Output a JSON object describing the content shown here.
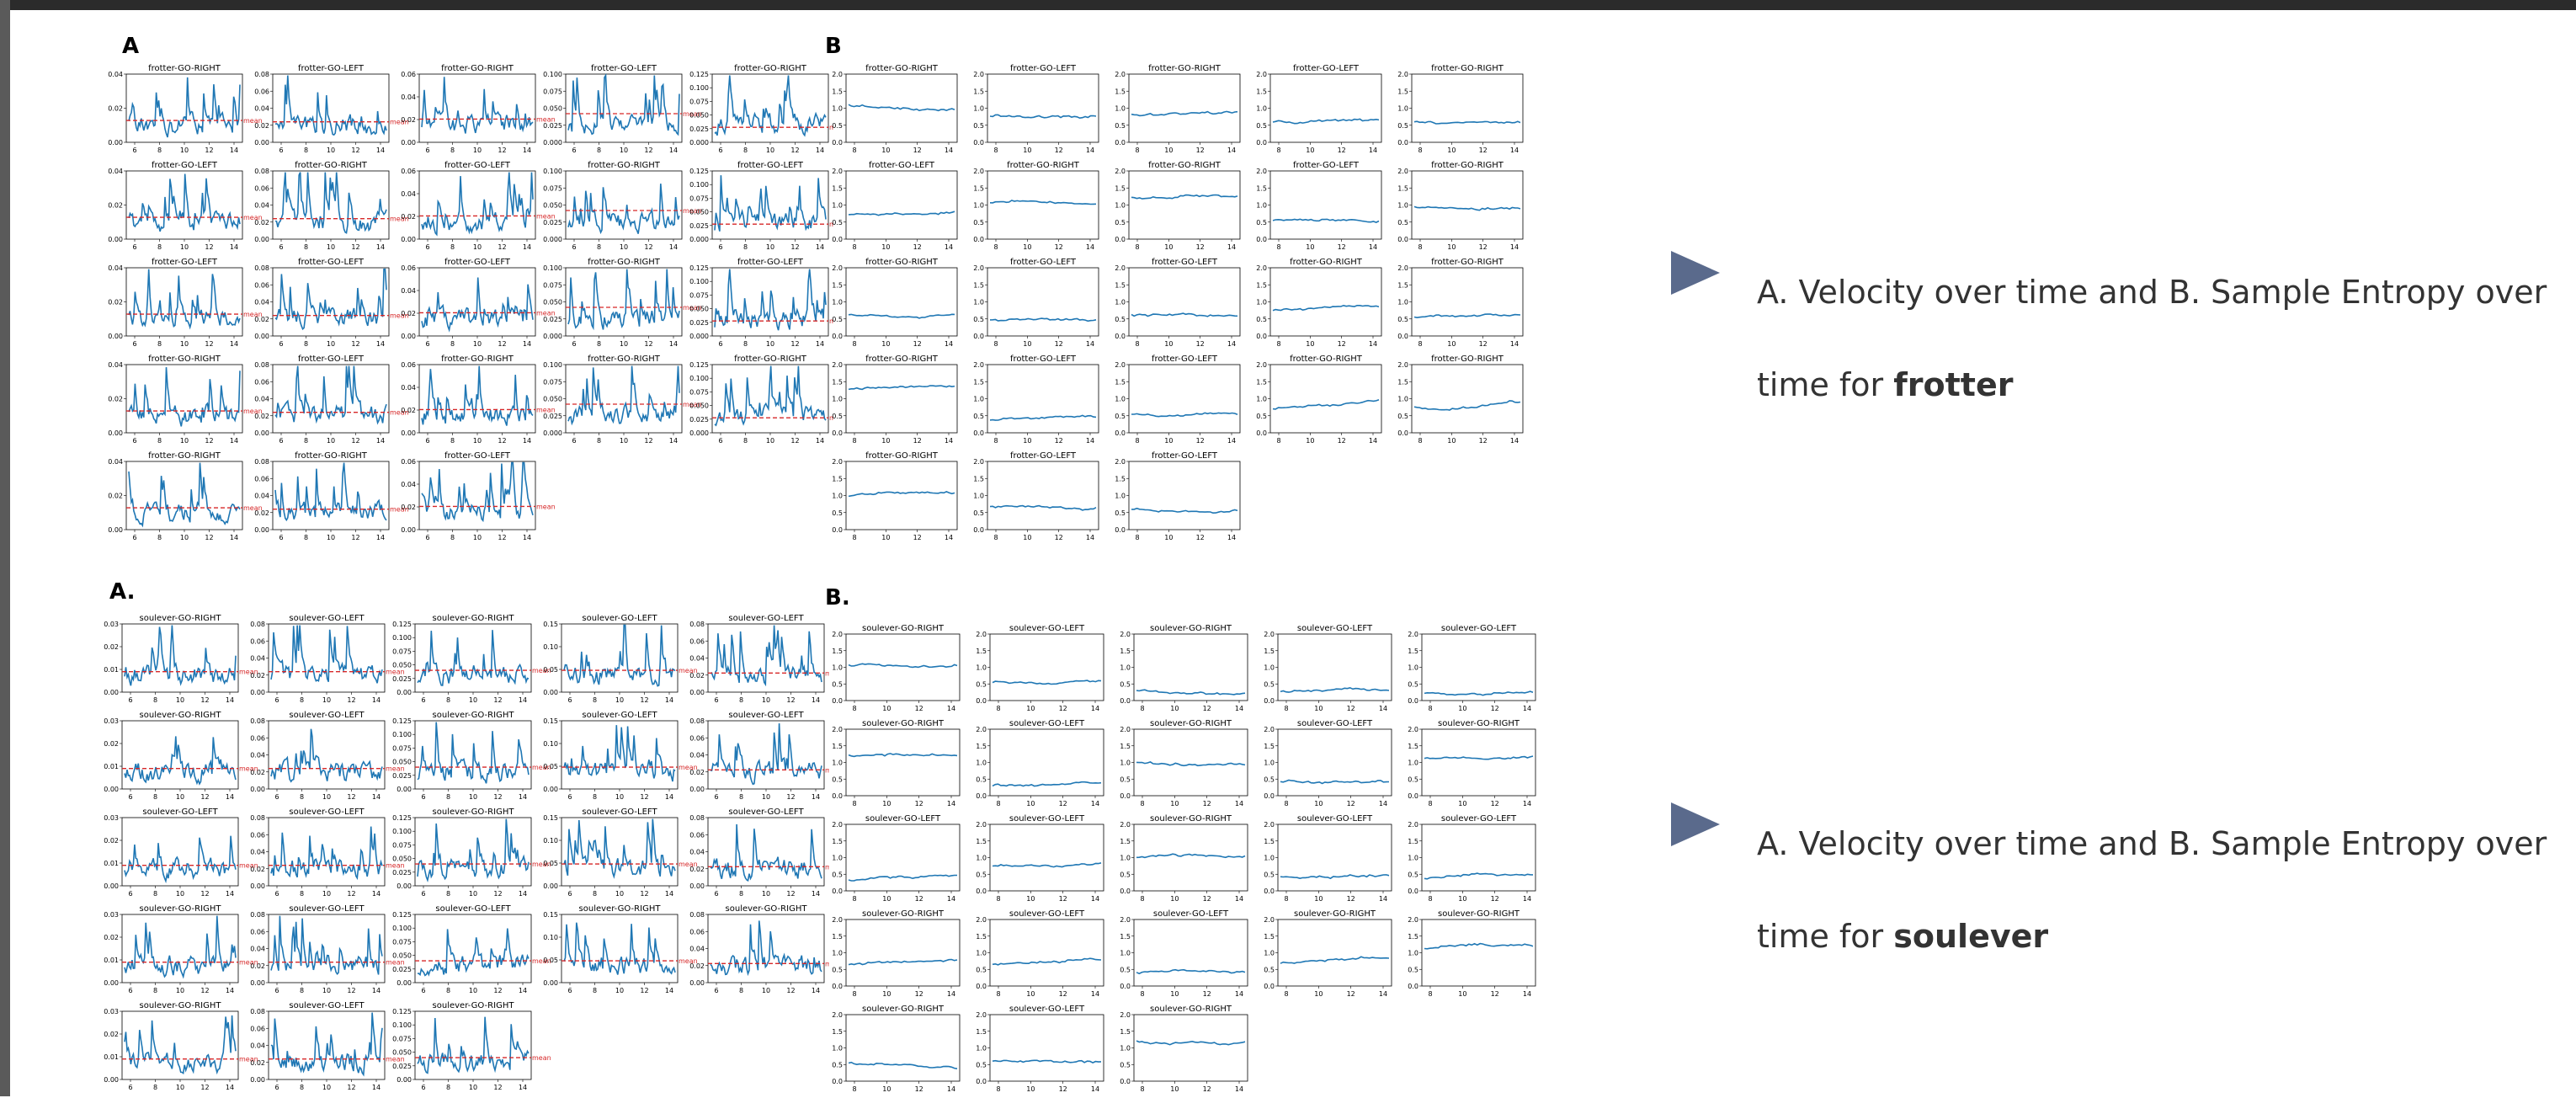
{
  "slide": {
    "bullets": [
      {
        "text": "A. Velocity over time and B. Sample Entropy over time for ",
        "bold": "frotter"
      },
      {
        "text": "A. Velocity over time and B. Sample Entropy over time for ",
        "bold": "soulever"
      }
    ]
  },
  "colors": {
    "line": "#1f77b4",
    "mean": "#d62728",
    "axis": "#000000",
    "bullet": "#5a6a8c"
  },
  "chart_data": [
    {
      "type": "line",
      "panel": "A",
      "subject": "frotter",
      "mean_label": "mean",
      "titles": [
        "frotter-GO-RIGHT",
        "frotter-GO-LEFT",
        "frotter-GO-RIGHT",
        "frotter-GO-LEFT",
        "frotter-GO-RIGHT",
        "frotter-GO-LEFT",
        "frotter-GO-RIGHT",
        "frotter-GO-LEFT",
        "frotter-GO-RIGHT",
        "frotter-GO-LEFT",
        "frotter-GO-LEFT",
        "frotter-GO-LEFT",
        "frotter-GO-LEFT",
        "frotter-GO-RIGHT",
        "frotter-GO-LEFT",
        "frotter-GO-RIGHT",
        "frotter-GO-LEFT",
        "frotter-GO-RIGHT",
        "frotter-GO-RIGHT",
        "frotter-GO-RIGHT",
        "frotter-GO-RIGHT",
        "frotter-GO-RIGHT",
        "frotter-GO-LEFT"
      ],
      "yticks": [
        [
          "0.00",
          "0.02",
          "0.04"
        ],
        [
          "0.00",
          "0.02",
          "0.04",
          "0.06",
          "0.08"
        ],
        [
          "0.00",
          "0.02",
          "0.04",
          "0.06"
        ],
        [
          "0.000",
          "0.025",
          "0.050",
          "0.075",
          "0.100"
        ],
        [
          "0.000",
          "0.025",
          "0.050",
          "0.075",
          "0.100",
          "0.125"
        ]
      ],
      "xticks": [
        "6",
        "8",
        "10",
        "12",
        "14"
      ],
      "mean_level": [
        0.32,
        0.3,
        0.34,
        0.42,
        0.22
      ]
    },
    {
      "type": "line",
      "panel": "B",
      "subject": "frotter",
      "titles": [
        "frotter-GO-RIGHT",
        "frotter-GO-LEFT",
        "frotter-GO-RIGHT",
        "frotter-GO-LEFT",
        "frotter-GO-RIGHT",
        "frotter-GO-LEFT",
        "frotter-GO-RIGHT",
        "frotter-GO-RIGHT",
        "frotter-GO-LEFT",
        "frotter-GO-RIGHT",
        "frotter-GO-RIGHT",
        "frotter-GO-LEFT",
        "frotter-GO-LEFT",
        "frotter-GO-RIGHT",
        "frotter-GO-RIGHT",
        "frotter-GO-RIGHT",
        "frotter-GO-LEFT",
        "frotter-GO-LEFT",
        "frotter-GO-RIGHT",
        "frotter-GO-RIGHT",
        "frotter-GO-RIGHT",
        "frotter-GO-LEFT",
        "frotter-GO-LEFT"
      ],
      "yticks": [
        "0.0",
        "0.5",
        "1.0",
        "1.5",
        "2.0"
      ],
      "ylim": [
        0,
        2
      ],
      "xticks": [
        "8",
        "10",
        "12",
        "14"
      ],
      "levels": [
        1.1,
        0.75,
        0.8,
        0.6,
        0.6,
        0.75,
        1.05,
        1.2,
        0.55,
        0.95,
        0.65,
        0.45,
        0.6,
        0.75,
        0.55,
        1.3,
        0.35,
        0.55,
        0.7,
        0.75,
        1.0,
        0.65,
        0.6
      ]
    },
    {
      "type": "line",
      "panel": "A.",
      "subject": "soulever",
      "mean_label": "mean",
      "titles": [
        "soulever-GO-RIGHT",
        "soulever-GO-LEFT",
        "soulever-GO-RIGHT",
        "soulever-GO-LEFT",
        "soulever-GO-LEFT",
        "soulever-GO-RIGHT",
        "soulever-GO-LEFT",
        "soulever-GO-RIGHT",
        "soulever-GO-LEFT",
        "soulever-GO-LEFT",
        "soulever-GO-LEFT",
        "soulever-GO-LEFT",
        "soulever-GO-RIGHT",
        "soulever-GO-LEFT",
        "soulever-GO-LEFT",
        "soulever-GO-RIGHT",
        "soulever-GO-LEFT",
        "soulever-GO-LEFT",
        "soulever-GO-RIGHT",
        "soulever-GO-RIGHT",
        "soulever-GO-RIGHT",
        "soulever-GO-LEFT",
        "soulever-GO-RIGHT"
      ],
      "yticks": [
        [
          "0.00",
          "0.01",
          "0.02",
          "0.03"
        ],
        [
          "0.00",
          "0.02",
          "0.04",
          "0.06",
          "0.08"
        ],
        [
          "0.00",
          "0.025",
          "0.050",
          "0.075",
          "0.100",
          "0.125"
        ],
        [
          "0.00",
          "0.05",
          "0.10",
          "0.15"
        ],
        [
          "0.00",
          "0.02",
          "0.04",
          "0.06",
          "0.08"
        ]
      ],
      "xticks": [
        "6",
        "8",
        "10",
        "12",
        "14"
      ],
      "mean_level": [
        0.3,
        0.3,
        0.32,
        0.32,
        0.28
      ]
    },
    {
      "type": "line",
      "panel": "B.",
      "subject": "soulever",
      "titles": [
        "soulever-GO-RIGHT",
        "soulever-GO-LEFT",
        "soulever-GO-RIGHT",
        "soulever-GO-LEFT",
        "soulever-GO-LEFT",
        "soulever-GO-RIGHT",
        "soulever-GO-LEFT",
        "soulever-GO-RIGHT",
        "soulever-GO-LEFT",
        "soulever-GO-RIGHT",
        "soulever-GO-LEFT",
        "soulever-GO-LEFT",
        "soulever-GO-RIGHT",
        "soulever-GO-LEFT",
        "soulever-GO-LEFT",
        "soulever-GO-RIGHT",
        "soulever-GO-LEFT",
        "soulever-GO-LEFT",
        "soulever-GO-RIGHT",
        "soulever-GO-RIGHT",
        "soulever-GO-RIGHT",
        "soulever-GO-LEFT",
        "soulever-GO-RIGHT"
      ],
      "yticks": [
        "0.0",
        "0.5",
        "1.0",
        "1.5",
        "2.0"
      ],
      "ylim": [
        0,
        2
      ],
      "xticks": [
        "8",
        "10",
        "12",
        "14"
      ],
      "levels": [
        1.05,
        0.55,
        0.3,
        0.3,
        0.2,
        1.2,
        0.3,
        1.0,
        0.45,
        1.1,
        0.3,
        0.75,
        1.0,
        0.45,
        0.35,
        0.65,
        0.65,
        0.4,
        0.7,
        1.1,
        0.55,
        0.6,
        1.2
      ]
    }
  ]
}
